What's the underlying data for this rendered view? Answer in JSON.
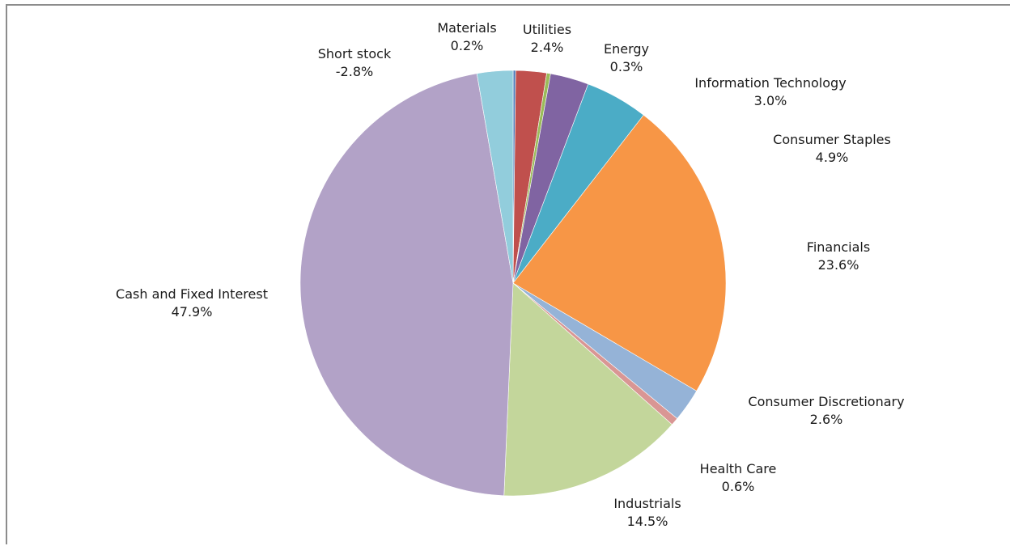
{
  "chart_data": {
    "type": "pie",
    "title": "",
    "slices": [
      {
        "label": "Materials",
        "value_label": "0.2%",
        "value": 0.2,
        "color": "#4f81bd"
      },
      {
        "label": "Utilities",
        "value_label": "2.4%",
        "value": 2.4,
        "color": "#c0504d"
      },
      {
        "label": "Energy",
        "value_label": "0.3%",
        "value": 0.3,
        "color": "#9bbb59"
      },
      {
        "label": "Information Technology",
        "value_label": "3.0%",
        "value": 3.0,
        "color": "#8064a2"
      },
      {
        "label": "Consumer Staples",
        "value_label": "4.9%",
        "value": 4.9,
        "color": "#4bacc6"
      },
      {
        "label": "Financials",
        "value_label": "23.6%",
        "value": 23.6,
        "color": "#f79646"
      },
      {
        "label": "Consumer Discretionary",
        "value_label": "2.6%",
        "value": 2.6,
        "color": "#95b3d7"
      },
      {
        "label": "Health Care",
        "value_label": "0.6%",
        "value": 0.6,
        "color": "#d99694"
      },
      {
        "label": "Industrials",
        "value_label": "14.5%",
        "value": 14.5,
        "color": "#c3d69b"
      },
      {
        "label": "Cash and Fixed Interest",
        "value_label": "47.9%",
        "value": 47.9,
        "color": "#b2a2c7"
      },
      {
        "label": "Short stock",
        "value_label": "-2.8%",
        "value": 2.8,
        "color": "#92cddc"
      }
    ],
    "legend": "none",
    "data_labels": "outside"
  }
}
